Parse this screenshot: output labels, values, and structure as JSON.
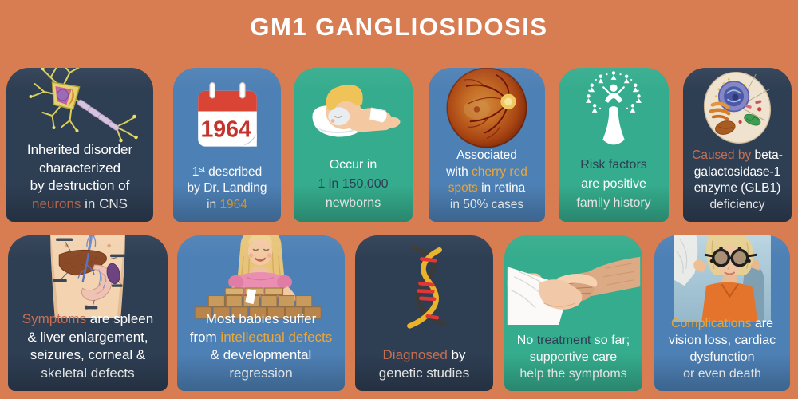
{
  "title": "GM1 GANGLIOSIDOSIS",
  "palette": {
    "bg": "#d87c52",
    "dark": "#2e3e53",
    "blue": "#4d80b5",
    "teal": "#35ac8d",
    "accent-salmon": "#c86f51",
    "accent-gold": "#e9a73b",
    "text-dark": "#2e3e53",
    "white": "#ffffff",
    "calendar-red": "#c4342d"
  },
  "cards": [
    {
      "name": "inherited-disorder",
      "theme": "dark",
      "icon": "neuron-illustration",
      "lines": [
        [
          {
            "t": "Inherited disorder",
            "s": "w"
          }
        ],
        [
          {
            "t": "characterized",
            "s": "w"
          }
        ],
        [
          {
            "t": "by destruction of",
            "s": "w"
          }
        ],
        [
          {
            "t": "neurons",
            "s": "o"
          },
          {
            "t": " in CNS",
            "s": "w"
          }
        ]
      ]
    },
    {
      "name": "first-described",
      "theme": "blue",
      "icon": "calendar-1964-icon",
      "icon_year": "1964",
      "lines": [
        [
          {
            "t": "1",
            "s": "w"
          },
          {
            "t": "st",
            "s": "w sup"
          },
          {
            "t": " described",
            "s": "w"
          }
        ],
        [
          {
            "t": "by Dr. Landing",
            "s": "w"
          }
        ],
        [
          {
            "t": "in ",
            "s": "w"
          },
          {
            "t": "1964",
            "s": "y"
          }
        ]
      ]
    },
    {
      "name": "occurrence",
      "theme": "teal",
      "icon": "sleeping-baby-illustration",
      "lines": [
        [
          {
            "t": "Occur in",
            "s": "w"
          }
        ],
        [
          {
            "t": "1 in 150,000",
            "s": "d"
          }
        ],
        [
          {
            "t": "newborns",
            "s": "w"
          }
        ]
      ]
    },
    {
      "name": "cherry-red-spots",
      "theme": "blue",
      "icon": "retina-fundus-photo",
      "lines": [
        [
          {
            "t": "Associated",
            "s": "w"
          }
        ],
        [
          {
            "t": "with ",
            "s": "w"
          },
          {
            "t": "cherry red",
            "s": "y"
          }
        ],
        [
          {
            "t": "spots",
            "s": "y"
          },
          {
            "t": " in retina",
            "s": "w"
          }
        ],
        [
          {
            "t": "in 50% cases",
            "s": "w"
          }
        ]
      ]
    },
    {
      "name": "risk-factors",
      "theme": "teal",
      "icon": "family-tree-icon",
      "lines": [
        [
          {
            "t": "Risk factors",
            "s": "d"
          }
        ],
        [
          {
            "t": "are positive",
            "s": "w"
          }
        ],
        [
          {
            "t": "family history",
            "s": "w"
          }
        ]
      ]
    },
    {
      "name": "cause",
      "theme": "dark",
      "icon": "cell-illustration",
      "lines": [
        [
          {
            "t": "Caused by",
            "s": "o"
          },
          {
            "t": " beta-",
            "s": "w"
          }
        ],
        [
          {
            "t": "galactosidase-1",
            "s": "w"
          }
        ],
        [
          {
            "t": "enzyme (GLB1)",
            "s": "w"
          }
        ],
        [
          {
            "t": "deficiency",
            "s": "w"
          }
        ]
      ]
    },
    {
      "name": "symptoms",
      "theme": "dark",
      "icon": "abdomen-organs-illustration",
      "lines": [
        [
          {
            "t": "Symptoms",
            "s": "o"
          },
          {
            "t": " are spleen",
            "s": "w"
          }
        ],
        [
          {
            "t": "& liver enlargement,",
            "s": "w"
          }
        ],
        [
          {
            "t": "seizures, corneal &",
            "s": "w"
          }
        ],
        [
          {
            "t": "skeletal defects",
            "s": "w"
          }
        ]
      ]
    },
    {
      "name": "intellectual-defects",
      "theme": "blue",
      "icon": "child-with-blocks-photo",
      "lines": [
        [
          {
            "t": "Most babies suffer",
            "s": "w"
          }
        ],
        [
          {
            "t": "from ",
            "s": "w"
          },
          {
            "t": "intellectual defects",
            "s": "y"
          }
        ],
        [
          {
            "t": "& developmental",
            "s": "w"
          }
        ],
        [
          {
            "t": "regression",
            "s": "w"
          }
        ]
      ]
    },
    {
      "name": "diagnosis",
      "theme": "dark",
      "icon": "dna-icon",
      "lines": [
        [
          {
            "t": "Diagnosed",
            "s": "o"
          },
          {
            "t": " by",
            "s": "w"
          }
        ],
        [
          {
            "t": "genetic studies",
            "s": "w"
          }
        ]
      ]
    },
    {
      "name": "treatment",
      "theme": "teal",
      "icon": "caring-hands-photo",
      "lines": [
        [
          {
            "t": "No ",
            "s": "w"
          },
          {
            "t": "treatment",
            "s": "d"
          },
          {
            "t": " so far;",
            "s": "w"
          }
        ],
        [
          {
            "t": "supportive care",
            "s": "w"
          }
        ],
        [
          {
            "t": "help the symptoms",
            "s": "w"
          }
        ]
      ]
    },
    {
      "name": "complications",
      "theme": "blue",
      "icon": "eye-exam-photo",
      "lines": [
        [
          {
            "t": "Complications",
            "s": "y"
          },
          {
            "t": " are",
            "s": "w"
          }
        ],
        [
          {
            "t": "vision loss, cardiac",
            "s": "w"
          }
        ],
        [
          {
            "t": "dysfunction",
            "s": "w"
          }
        ],
        [
          {
            "t": "or even death",
            "s": "w"
          }
        ]
      ]
    }
  ]
}
